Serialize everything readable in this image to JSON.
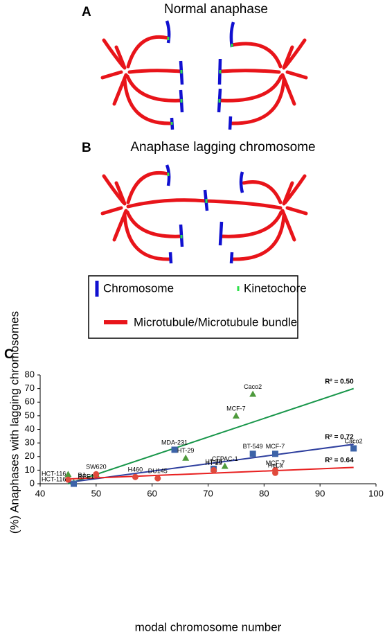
{
  "panels": [
    {
      "label": "A",
      "title": "Normal anaphase"
    },
    {
      "label": "B",
      "title": "Anaphase lagging chromosome"
    },
    {
      "label": "C"
    }
  ],
  "legend": {
    "items": [
      "Chromosome",
      "Kinetochore",
      "Microtubule/Microtubule bundle"
    ]
  },
  "chart_data": {
    "type": "scatter",
    "x_label": "modal chromosome number",
    "y_label": "(%) Anaphases with lagging chromosomes",
    "xlim": [
      40,
      100
    ],
    "xticks": [
      40,
      50,
      60,
      70,
      80,
      90,
      100
    ],
    "ylim": [
      0,
      80
    ],
    "yticks": [
      0,
      10,
      20,
      30,
      40,
      50,
      60,
      70,
      80
    ],
    "series": [
      {
        "marker": "triangle",
        "color": "#4e9a3c",
        "x": [
          45,
          46,
          50,
          66,
          73,
          75,
          78
        ],
        "values": [
          7,
          1,
          7,
          19,
          13,
          50,
          66
        ],
        "labels": [
          "HCT-116",
          "BJ",
          "SW620",
          "HT-29",
          "CFPAC-1",
          "MCF-7",
          "Caco2"
        ],
        "trend": {
          "color": "#18964a",
          "x": [
            45,
            96
          ],
          "values": [
            0,
            70
          ],
          "label": "R² = 0.50"
        }
      },
      {
        "marker": "square",
        "color": "#3d63a8",
        "x": [
          46,
          64,
          71,
          78,
          82,
          96
        ],
        "values": [
          0,
          25,
          11,
          22,
          22,
          26
        ],
        "labels": [
          "RPE1",
          "MDA-231",
          "HT-29",
          "BT-549",
          "MCF-7",
          "Caco2"
        ],
        "trend": {
          "color": "#2e3f9e",
          "x": [
            45,
            96
          ],
          "values": [
            1,
            29
          ],
          "label": "R² = 0.72"
        }
      },
      {
        "marker": "circle",
        "color": "#e04a3c",
        "x": [
          45,
          50,
          57,
          61,
          71,
          82,
          82
        ],
        "values": [
          3,
          7,
          5,
          4,
          10,
          10,
          8
        ],
        "labels": [
          "HCT-116",
          null,
          "H460",
          "DU145",
          "HT-29",
          "MCF-7",
          "HeLa"
        ],
        "trend": {
          "color": "#e82020",
          "x": [
            45,
            96
          ],
          "values": [
            3.5,
            12
          ],
          "label": "R² = 0.64"
        }
      }
    ]
  }
}
